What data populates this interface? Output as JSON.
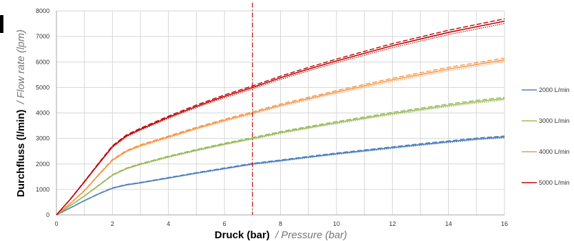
{
  "chart_data": {
    "type": "line",
    "xlabel": "Druck (bar)",
    "xlabel_en": "/ Pressure (bar)",
    "ylabel": "Durchfluss (l/min)",
    "ylabel_en": "/ Flow rate (lpm)",
    "xlim": [
      0,
      16
    ],
    "ylim": [
      0,
      8000
    ],
    "x_ticks": [
      "0",
      "2",
      "4",
      "6",
      "8",
      "10",
      "12",
      "14",
      "16"
    ],
    "y_ticks": [
      "0",
      "1000",
      "2000",
      "3000",
      "4000",
      "5000",
      "6000",
      "7000",
      "8000"
    ],
    "grid": true,
    "legend_position": "right",
    "reference_line": {
      "x": 7,
      "color": "#c00000",
      "style": "dash-dot"
    },
    "series": [
      {
        "name": "2000 L/min",
        "color": "#4f81bd",
        "x": [
          0,
          0.5,
          1,
          1.5,
          2,
          2.5,
          3,
          4,
          5,
          6,
          7,
          8,
          9,
          10,
          11,
          12,
          13,
          14,
          15,
          16
        ],
        "values": [
          0,
          280,
          560,
          820,
          1050,
          1180,
          1260,
          1450,
          1640,
          1820,
          2000,
          2130,
          2270,
          2400,
          2520,
          2640,
          2760,
          2870,
          2980,
          3060
        ]
      },
      {
        "name": "3000 L/min",
        "color": "#9bbb59",
        "x": [
          0,
          0.5,
          1,
          1.5,
          2,
          2.5,
          3,
          4,
          5,
          6,
          7,
          8,
          9,
          10,
          11,
          12,
          13,
          14,
          15,
          16
        ],
        "values": [
          0,
          370,
          740,
          1150,
          1560,
          1820,
          1990,
          2280,
          2540,
          2780,
          3000,
          3230,
          3430,
          3620,
          3800,
          3980,
          4140,
          4300,
          4440,
          4560
        ]
      },
      {
        "name": "4000 L/min",
        "color": "#f79646",
        "x": [
          0,
          0.5,
          1,
          1.5,
          2,
          2.5,
          3,
          4,
          5,
          6,
          7,
          8,
          9,
          10,
          11,
          12,
          13,
          14,
          15,
          16
        ],
        "values": [
          0,
          450,
          950,
          1560,
          2150,
          2500,
          2720,
          3060,
          3400,
          3710,
          4000,
          4300,
          4560,
          4820,
          5060,
          5300,
          5510,
          5720,
          5900,
          6080
        ]
      },
      {
        "name": "5000 L/min",
        "color": "#c00000",
        "x": [
          0,
          0.5,
          1,
          1.5,
          2,
          2.5,
          3,
          4,
          5,
          6,
          7,
          8,
          9,
          10,
          11,
          12,
          13,
          14,
          15,
          16
        ],
        "values": [
          0,
          620,
          1300,
          2000,
          2680,
          3100,
          3360,
          3830,
          4260,
          4650,
          5000,
          5380,
          5720,
          6040,
          6340,
          6640,
          6900,
          7160,
          7380,
          7600
        ]
      }
    ]
  }
}
